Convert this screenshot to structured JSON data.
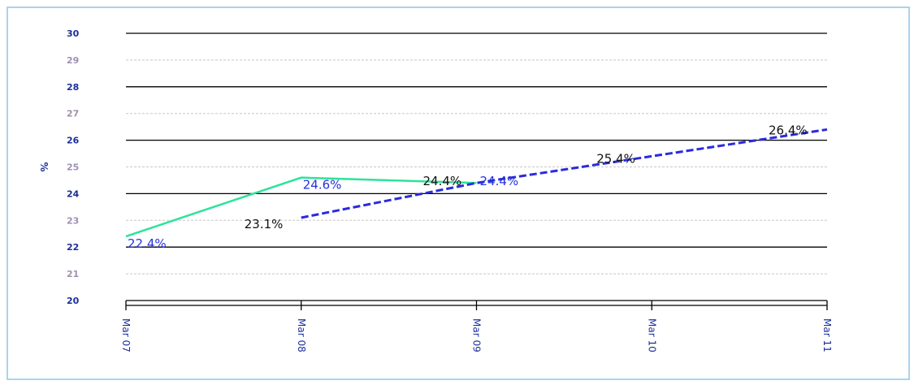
{
  "chart_data": {
    "type": "line",
    "ylabel": "%",
    "xlabel": "",
    "title": "",
    "ylim": [
      20,
      30
    ],
    "yticks": [
      20,
      21,
      22,
      23,
      24,
      25,
      26,
      27,
      28,
      29,
      30
    ],
    "categories": [
      "Mar 07",
      "Mar 08",
      "Mar 09",
      "Mar 10",
      "Mar 11"
    ],
    "grid": true,
    "series": [
      {
        "color": "#2de39a",
        "style": "solid",
        "points": [
          {
            "x": "Mar 07",
            "y": 22.4,
            "label": "22.4%"
          },
          {
            "x": "Mar 08",
            "y": 24.6,
            "label": "24.6%"
          },
          {
            "x": "Mar 09",
            "y": 24.4,
            "label": "24.4%"
          }
        ],
        "label_color": "#2233dd"
      },
      {
        "color": "#2a2ae0",
        "style": "dashed",
        "points": [
          {
            "x": "Mar 08",
            "y": 23.1,
            "label": "23.1%"
          },
          {
            "x": "Mar 09",
            "y": 24.4,
            "label": "24.4%"
          },
          {
            "x": "Mar 10",
            "y": 25.4,
            "label": "25.4%"
          },
          {
            "x": "Mar 11",
            "y": 26.4,
            "label": "26.4%"
          }
        ],
        "label_color": "#111111"
      }
    ],
    "colors": {
      "major_grid": "#000000",
      "minor_grid": "#c8c8c8",
      "major_tick_label": "#1a2f9a",
      "minor_tick_label": "#a08fb0"
    }
  }
}
